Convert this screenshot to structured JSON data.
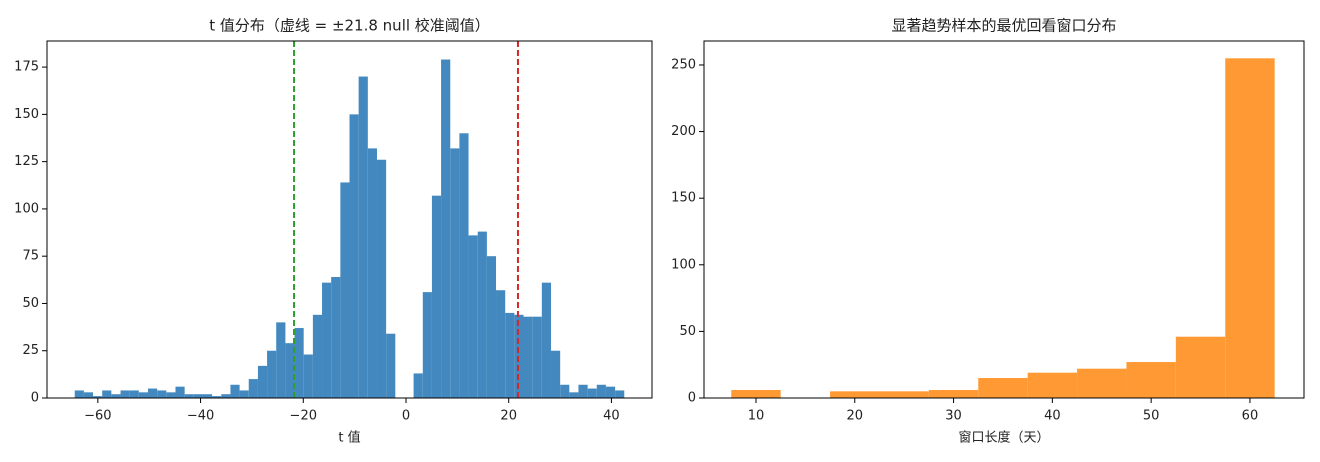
{
  "chart_data": [
    {
      "type": "histogram",
      "title": "t 值分布（虚线 = ±21.8 null 校准阈值）",
      "x_label": "t 值",
      "color": "#4389bf",
      "bins": [
        -64.5,
        -62.72,
        -60.93,
        -59.15,
        -57.37,
        -55.58,
        -53.8,
        -52.02,
        -50.23,
        -48.45,
        -46.67,
        -44.88,
        -43.1,
        -41.32,
        -39.53,
        -37.75,
        -35.97,
        -34.18,
        -32.4,
        -30.62,
        -28.83,
        -27.05,
        -25.27,
        -23.48,
        -21.7,
        -19.92,
        -18.13,
        -16.35,
        -14.57,
        -12.78,
        -11.0,
        -9.22,
        -7.43,
        -5.65,
        -3.87,
        -2.08,
        -0.3,
        1.48,
        3.27,
        5.05,
        6.83,
        8.62,
        10.4,
        12.18,
        13.97,
        15.75,
        17.53,
        19.32,
        21.1,
        22.88,
        24.67,
        26.45,
        28.23,
        30.02,
        31.8,
        33.58,
        35.37,
        37.15,
        38.93,
        40.72,
        42.5
      ],
      "values": [
        4,
        3,
        1,
        4,
        2,
        4,
        4,
        3,
        5,
        4,
        3,
        6,
        2,
        2,
        2,
        1,
        2,
        7,
        4,
        10,
        17,
        25,
        40,
        29,
        37,
        23,
        44,
        61,
        64,
        114,
        150,
        170,
        132,
        126,
        34,
        0,
        0,
        13,
        56,
        107,
        179,
        132,
        140,
        86,
        88,
        75,
        57,
        45,
        44,
        43,
        43,
        61,
        25,
        7,
        3,
        7,
        5,
        7,
        6,
        4
      ],
      "vlines": [
        {
          "value": -21.8,
          "color": "#2ca02c"
        },
        {
          "value": 21.8,
          "color": "#d62728"
        }
      ],
      "xlim": [
        -69.9,
        47.9
      ],
      "xticks": [
        {
          "value": -60,
          "label": "−60"
        },
        {
          "value": -40,
          "label": "−40"
        },
        {
          "value": -20,
          "label": "−20"
        },
        0,
        20,
        40
      ],
      "ylim": [
        0,
        188.8
      ],
      "yticks": [
        0,
        25,
        50,
        75,
        100,
        125,
        150,
        175
      ]
    },
    {
      "type": "histogram",
      "title": "显著趋势样本的最优回看窗口分布",
      "x_label": "窗口长度（天）",
      "color": "#ff9933",
      "bins": [
        7.5,
        12.5,
        17.5,
        22.5,
        27.5,
        32.5,
        37.5,
        42.5,
        47.5,
        52.5,
        57.5,
        62.5
      ],
      "values": [
        6,
        0,
        5,
        5,
        6,
        15,
        19,
        22,
        27,
        46,
        255
      ],
      "xlim": [
        4.74,
        65.47
      ],
      "xticks": [
        10,
        20,
        30,
        40,
        50,
        60
      ],
      "ylim": [
        0,
        268
      ],
      "yticks": [
        0,
        50,
        100,
        150,
        200,
        250
      ]
    }
  ]
}
